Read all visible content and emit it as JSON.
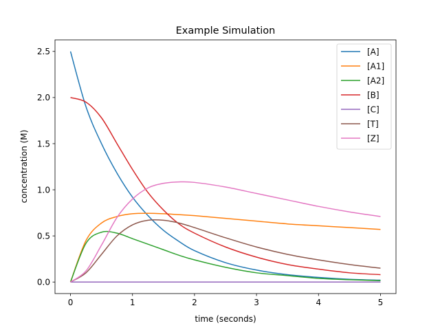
{
  "chart_data": {
    "type": "line",
    "title": "Example Simulation",
    "xlabel": "time (seconds)",
    "ylabel": "concentration (M)",
    "xlim": [
      -0.25,
      5.25
    ],
    "ylim": [
      -0.125,
      2.625
    ],
    "xticks": [
      0,
      1,
      2,
      3,
      4,
      5
    ],
    "xtick_labels": [
      "0",
      "1",
      "2",
      "3",
      "4",
      "5"
    ],
    "yticks": [
      0,
      0.5,
      1.0,
      1.5,
      2.0,
      2.5
    ],
    "ytick_labels": [
      "0.0",
      "0.5",
      "1.0",
      "1.5",
      "2.0",
      "2.5"
    ],
    "grid": false,
    "legend_position": "top-right",
    "x": [
      0,
      0.25,
      0.5,
      0.75,
      1.0,
      1.25,
      1.5,
      1.75,
      2.0,
      2.5,
      3.0,
      3.5,
      4.0,
      4.5,
      5.0
    ],
    "series": [
      {
        "name": "[A]",
        "color": "#1f77b4",
        "values": [
          2.5,
          1.9,
          1.5,
          1.18,
          0.92,
          0.72,
          0.56,
          0.44,
          0.34,
          0.21,
          0.13,
          0.08,
          0.05,
          0.03,
          0.02
        ]
      },
      {
        "name": "[A1]",
        "color": "#ff7f0e",
        "values": [
          0.0,
          0.45,
          0.64,
          0.71,
          0.74,
          0.745,
          0.74,
          0.73,
          0.72,
          0.69,
          0.66,
          0.63,
          0.61,
          0.59,
          0.57
        ]
      },
      {
        "name": "[A2]",
        "color": "#2ca02c",
        "values": [
          0.0,
          0.42,
          0.54,
          0.53,
          0.47,
          0.41,
          0.35,
          0.29,
          0.24,
          0.16,
          0.1,
          0.07,
          0.04,
          0.025,
          0.015
        ]
      },
      {
        "name": "[B]",
        "color": "#d62728",
        "values": [
          2.0,
          1.95,
          1.78,
          1.5,
          1.22,
          0.97,
          0.78,
          0.63,
          0.53,
          0.38,
          0.27,
          0.19,
          0.14,
          0.1,
          0.08
        ]
      },
      {
        "name": "[C]",
        "color": "#9467bd",
        "values": [
          0,
          0,
          0,
          0,
          0,
          0,
          0,
          0,
          0,
          0,
          0,
          0,
          0,
          0,
          0
        ]
      },
      {
        "name": "[T]",
        "color": "#8c564b",
        "values": [
          0.0,
          0.1,
          0.3,
          0.5,
          0.62,
          0.67,
          0.67,
          0.64,
          0.59,
          0.48,
          0.38,
          0.3,
          0.24,
          0.19,
          0.15
        ]
      },
      {
        "name": "[Z]",
        "color": "#e377c2",
        "values": [
          0.0,
          0.12,
          0.4,
          0.7,
          0.9,
          1.02,
          1.07,
          1.085,
          1.08,
          1.03,
          0.96,
          0.89,
          0.82,
          0.76,
          0.71
        ]
      }
    ]
  }
}
